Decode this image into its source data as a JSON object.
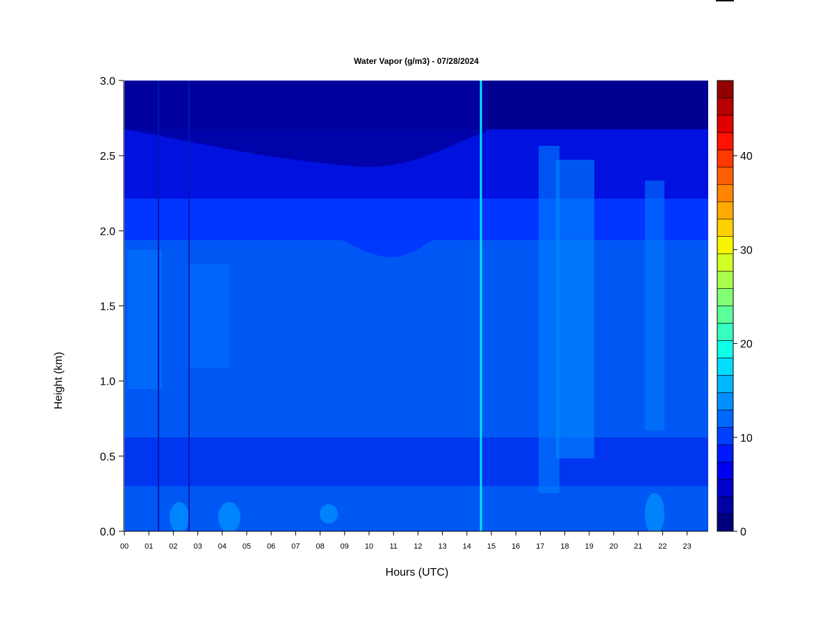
{
  "chart_data": {
    "type": "heatmap",
    "title": "Water Vapor (g/m3) - 07/28/2024",
    "xlabel": "Hours (UTC)",
    "ylabel": "Height (km)",
    "xlim": [
      0,
      24
    ],
    "ylim": [
      0.0,
      3.0
    ],
    "x_ticks": [
      "00",
      "01",
      "02",
      "03",
      "04",
      "05",
      "06",
      "07",
      "08",
      "09",
      "10",
      "11",
      "12",
      "13",
      "14",
      "15",
      "16",
      "17",
      "18",
      "19",
      "20",
      "21",
      "22",
      "23"
    ],
    "y_ticks": [
      "0.0",
      "0.5",
      "1.0",
      "1.5",
      "2.0",
      "2.5",
      "3.0"
    ],
    "colorbar": {
      "min": 0,
      "max": 48,
      "ticks": [
        "0",
        "10",
        "20",
        "30",
        "40"
      ],
      "colors": [
        "#00007f",
        "#0000a5",
        "#0000cb",
        "#0000f1",
        "#0019ff",
        "#0041ff",
        "#0068ff",
        "#008fff",
        "#00b6ff",
        "#00ddff",
        "#0fffe7",
        "#36ffc0",
        "#5cff9a",
        "#83ff73",
        "#aaff4c",
        "#d1ff26",
        "#f8f500",
        "#ffd000",
        "#ffaa00",
        "#ff8400",
        "#ff5f00",
        "#ff3900",
        "#ff1300",
        "#e00000",
        "#b90000",
        "#930000"
      ]
    },
    "layers_by_height_km": [
      {
        "from": 0.0,
        "to": 0.28,
        "value_gm3": "10-12"
      },
      {
        "from": 0.28,
        "to": 0.6,
        "value_gm3": "8-10"
      },
      {
        "from": 0.6,
        "to": 1.9,
        "value_gm3": "10-12"
      },
      {
        "from": 1.9,
        "to": 2.15,
        "value_gm3": "8-10"
      },
      {
        "from": 2.15,
        "to": 2.7,
        "value_gm3": "4-8"
      },
      {
        "from": 2.7,
        "to": 3.0,
        "value_gm3": "0-4"
      }
    ],
    "moist_columns_hours": [
      0.3,
      3.0,
      17.3,
      18.0,
      18.5,
      21.4,
      21.8
    ],
    "data_dropout_hours": [
      1.4,
      2.6,
      14.6
    ],
    "grid": false,
    "legend": "colorbar-right"
  }
}
